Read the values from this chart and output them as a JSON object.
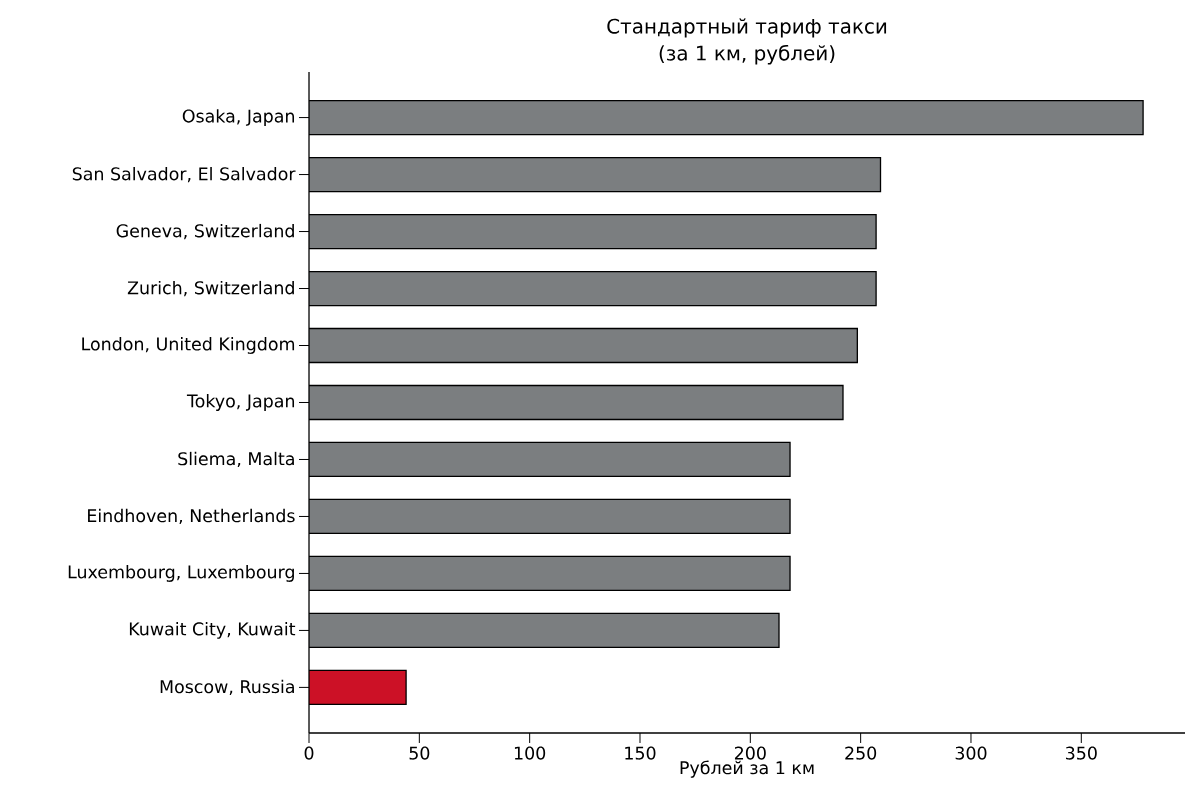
{
  "chart_data": {
    "type": "bar",
    "orientation": "horizontal",
    "title": "Стандартный тариф такси",
    "subtitle": "(за 1 км, рублей)",
    "xlabel": "Рублей за 1 км",
    "categories": [
      "Osaka, Japan",
      "San Salvador, El Salvador",
      "Geneva, Switzerland",
      "Zurich, Switzerland",
      "London, United Kingdom",
      "Tokyo, Japan",
      "Sliema, Malta",
      "Eindhoven, Netherlands",
      "Luxembourg, Luxembourg",
      "Kuwait City, Kuwait",
      "Moscow, Russia"
    ],
    "values": [
      378,
      259,
      257,
      257,
      248.5,
      242,
      218,
      218,
      218,
      213,
      44
    ],
    "colors": [
      "#7b7e80",
      "#7b7e80",
      "#7b7e80",
      "#7b7e80",
      "#7b7e80",
      "#7b7e80",
      "#7b7e80",
      "#7b7e80",
      "#7b7e80",
      "#7b7e80",
      "#cc1126"
    ],
    "xlim": [
      0,
      397
    ],
    "xticks": [
      0,
      50,
      100,
      150,
      200,
      250,
      300,
      350
    ],
    "grid": false
  }
}
